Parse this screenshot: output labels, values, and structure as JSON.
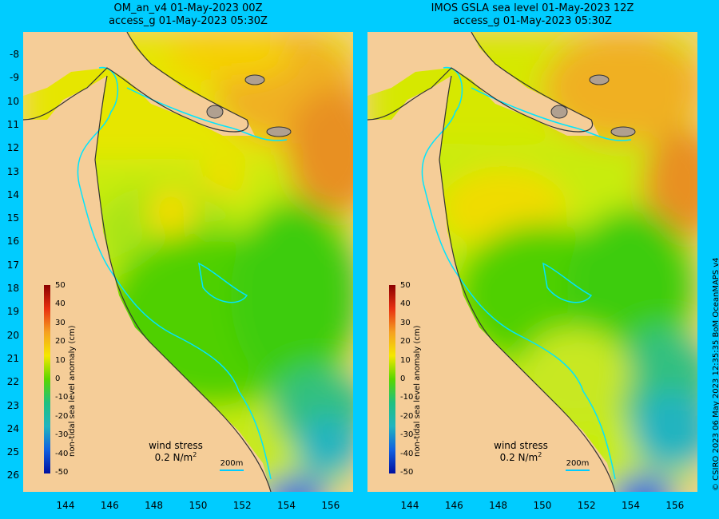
{
  "panels": [
    {
      "title_line1": "OM_an_v4  01-May-2023 00Z",
      "title_line2": "access_g 01-May-2023 05:30Z"
    },
    {
      "title_line1": "IMOS GSLA sea level  01-May-2023 12Z",
      "title_line2": "access_g 01-May-2023 05:30Z"
    }
  ],
  "lat_ticks": [
    "-8",
    "-9",
    "10",
    "11",
    "12",
    "13",
    "14",
    "15",
    "16",
    "17",
    "18",
    "19",
    "20",
    "21",
    "22",
    "23",
    "24",
    "25",
    "26"
  ],
  "lon_ticks": [
    "144",
    "146",
    "148",
    "150",
    "152",
    "154",
    "156"
  ],
  "colorbar": {
    "label": "non-tidal sea level anomaly (cm)",
    "ticks": [
      "50",
      "40",
      "30",
      "20",
      "10",
      "0",
      "-10",
      "-20",
      "-30",
      "-40",
      "-50"
    ]
  },
  "wind": {
    "label": "wind stress",
    "value": "0.2 N/m",
    "superscript": "2"
  },
  "depth_contour": "200m",
  "credit": "© CSIRO 2023   06 May 2023 12:35:35 BoM OceanMAPS v4",
  "colors": {
    "background": "#00ccff",
    "land": "#f5cd98",
    "reef": "#00e5ff",
    "anomaly_high": "#e8961e",
    "anomaly_mid": "#f5e800",
    "anomaly_zero": "#5ad600",
    "anomaly_low": "#22c0a0",
    "anomaly_min": "#1040d0"
  }
}
